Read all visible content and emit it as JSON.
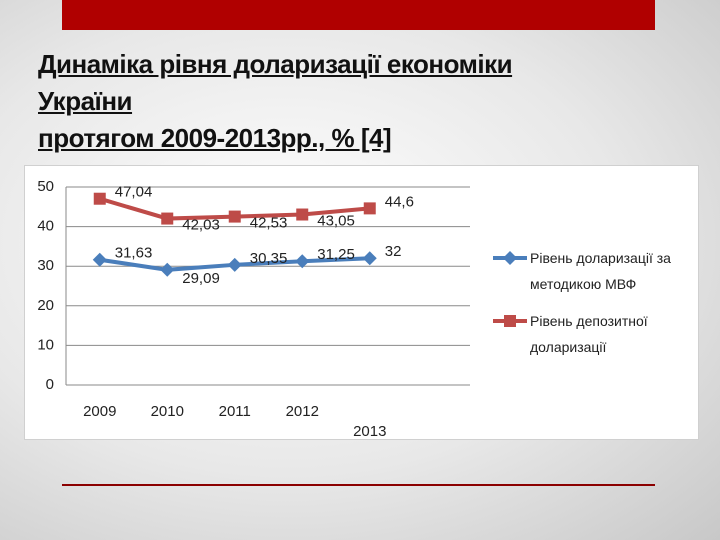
{
  "slide": {
    "title_lines": [
      "Динаміка рівня доларизації економіки",
      "України",
      "протягом 2009-2013рр., % [4]"
    ]
  },
  "chart_data": {
    "type": "line",
    "categories": [
      "2009",
      "2010",
      "2011",
      "2012",
      "2013"
    ],
    "series": [
      {
        "name": "Рівень доларизації за методикою МВФ",
        "color": "#4a7ebb",
        "marker": "diamond",
        "values": [
          31.63,
          29.09,
          30.35,
          31.25,
          32
        ],
        "value_labels": [
          "31,63",
          "29,09",
          "30,35",
          "31,25",
          "32"
        ]
      },
      {
        "name": "Рівень депозитної доларизації",
        "color": "#be4b48",
        "marker": "square",
        "values": [
          47.04,
          42.03,
          42.53,
          43.05,
          44.6
        ],
        "value_labels": [
          "47,04",
          "42,03",
          "42,53",
          "43,05",
          "44,6"
        ]
      }
    ],
    "ylim": [
      0,
      50
    ],
    "yticks": [
      0,
      10,
      20,
      30,
      40,
      50
    ],
    "grid": true,
    "legend": "right"
  }
}
